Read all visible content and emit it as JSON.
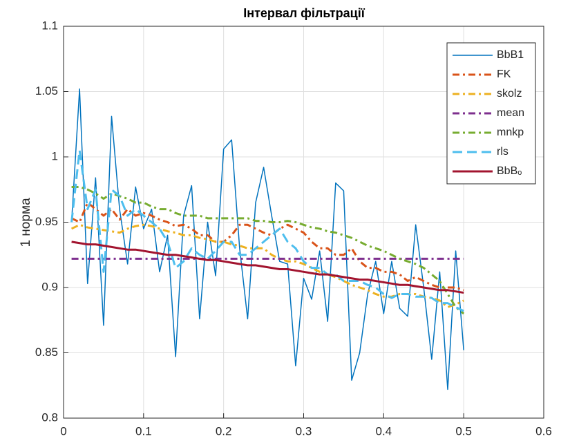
{
  "chart_data": {
    "type": "line",
    "title": "Інтервал фільтрації",
    "ylabel": "1 норма",
    "x": [
      0.01,
      0.02,
      0.03,
      0.04,
      0.05,
      0.06,
      0.07,
      0.08,
      0.09,
      0.1,
      0.11,
      0.12,
      0.13,
      0.14,
      0.15,
      0.16,
      0.17,
      0.18,
      0.19,
      0.2,
      0.21,
      0.22,
      0.23,
      0.24,
      0.25,
      0.26,
      0.27,
      0.28,
      0.29,
      0.3,
      0.31,
      0.32,
      0.33,
      0.34,
      0.35,
      0.36,
      0.37,
      0.38,
      0.39,
      0.4,
      0.41,
      0.42,
      0.43,
      0.44,
      0.45,
      0.46,
      0.47,
      0.48,
      0.49,
      0.5
    ],
    "series": [
      {
        "name": "BbB1",
        "color": "#0072bd",
        "linestyle": "solid",
        "linewidth": 1.5,
        "values": [
          0.95,
          1.052,
          0.903,
          0.984,
          0.871,
          1.031,
          0.96,
          0.918,
          0.977,
          0.945,
          0.96,
          0.912,
          0.94,
          0.847,
          0.955,
          0.978,
          0.876,
          0.95,
          0.909,
          1.006,
          1.013,
          0.93,
          0.876,
          0.965,
          0.992,
          0.955,
          0.92,
          0.918,
          0.84,
          0.907,
          0.891,
          0.928,
          0.874,
          0.98,
          0.974,
          0.829,
          0.85,
          0.895,
          0.92,
          0.88,
          0.92,
          0.884,
          0.878,
          0.948,
          0.9,
          0.845,
          0.912,
          0.822,
          0.928,
          0.852
        ]
      },
      {
        "name": "FK",
        "color": "#d95319",
        "linestyle": "dashdot",
        "linewidth": 3,
        "values": [
          0.953,
          0.95,
          0.965,
          0.96,
          0.955,
          0.96,
          0.952,
          0.96,
          0.955,
          0.957,
          0.955,
          0.952,
          0.95,
          0.947,
          0.948,
          0.945,
          0.94,
          0.94,
          0.935,
          0.935,
          0.94,
          0.948,
          0.948,
          0.945,
          0.942,
          0.94,
          0.945,
          0.948,
          0.945,
          0.942,
          0.935,
          0.93,
          0.93,
          0.925,
          0.925,
          0.93,
          0.92,
          0.915,
          0.915,
          0.912,
          0.912,
          0.91,
          0.905,
          0.908,
          0.905,
          0.902,
          0.9,
          0.9,
          0.9,
          0.898
        ]
      },
      {
        "name": "skolz",
        "color": "#edb120",
        "linestyle": "dashdot",
        "linewidth": 3,
        "values": [
          0.945,
          0.948,
          0.946,
          0.945,
          0.944,
          0.943,
          0.942,
          0.945,
          0.947,
          0.948,
          0.947,
          0.945,
          0.943,
          0.942,
          0.94,
          0.94,
          0.938,
          0.937,
          0.935,
          0.935,
          0.933,
          0.932,
          0.93,
          0.93,
          0.93,
          0.925,
          0.922,
          0.92,
          0.92,
          0.918,
          0.915,
          0.912,
          0.91,
          0.908,
          0.905,
          0.902,
          0.9,
          0.898,
          0.895,
          0.893,
          0.893,
          0.895,
          0.895,
          0.895,
          0.893,
          0.892,
          0.89,
          0.885,
          0.887,
          0.89
        ]
      },
      {
        "name": "mean",
        "color": "#7e2f8e",
        "linestyle": "dashdot",
        "linewidth": 3,
        "values": [
          0.922,
          0.922,
          0.922,
          0.922,
          0.922,
          0.922,
          0.922,
          0.922,
          0.922,
          0.922,
          0.922,
          0.922,
          0.922,
          0.922,
          0.922,
          0.922,
          0.922,
          0.922,
          0.922,
          0.922,
          0.922,
          0.922,
          0.922,
          0.922,
          0.922,
          0.922,
          0.922,
          0.922,
          0.922,
          0.922,
          0.922,
          0.922,
          0.922,
          0.922,
          0.922,
          0.922,
          0.922,
          0.922,
          0.922,
          0.922,
          0.922,
          0.922,
          0.922,
          0.922,
          0.922,
          0.922,
          0.922,
          0.922,
          0.922,
          0.922
        ]
      },
      {
        "name": "mnkp",
        "color": "#77ac30",
        "linestyle": "dashdot",
        "linewidth": 3,
        "values": [
          0.977,
          0.977,
          0.975,
          0.972,
          0.968,
          0.972,
          0.97,
          0.968,
          0.965,
          0.965,
          0.962,
          0.96,
          0.96,
          0.957,
          0.955,
          0.955,
          0.955,
          0.953,
          0.953,
          0.953,
          0.953,
          0.953,
          0.953,
          0.951,
          0.951,
          0.95,
          0.95,
          0.951,
          0.95,
          0.948,
          0.946,
          0.945,
          0.943,
          0.942,
          0.94,
          0.938,
          0.935,
          0.932,
          0.93,
          0.928,
          0.925,
          0.922,
          0.92,
          0.918,
          0.915,
          0.91,
          0.905,
          0.895,
          0.885,
          0.88
        ]
      },
      {
        "name": "rls",
        "color": "#4dbeee",
        "linestyle": "dashed",
        "linewidth": 3,
        "values": [
          0.95,
          1.005,
          0.96,
          0.975,
          0.912,
          0.975,
          0.97,
          0.955,
          0.96,
          0.955,
          0.95,
          0.945,
          0.935,
          0.915,
          0.92,
          0.93,
          0.925,
          0.922,
          0.928,
          0.935,
          0.935,
          0.925,
          0.925,
          0.93,
          0.935,
          0.94,
          0.945,
          0.935,
          0.93,
          0.92,
          0.915,
          0.915,
          0.91,
          0.91,
          0.905,
          0.905,
          0.905,
          0.902,
          0.9,
          0.895,
          0.892,
          0.895,
          0.895,
          0.893,
          0.893,
          0.892,
          0.888,
          0.888,
          0.885,
          0.882
        ]
      },
      {
        "name": "BbBₒ",
        "color": "#a2142f",
        "linestyle": "solid",
        "linewidth": 3,
        "values": [
          0.935,
          0.934,
          0.933,
          0.933,
          0.932,
          0.931,
          0.93,
          0.929,
          0.929,
          0.928,
          0.927,
          0.926,
          0.925,
          0.925,
          0.924,
          0.923,
          0.922,
          0.921,
          0.921,
          0.92,
          0.919,
          0.918,
          0.917,
          0.917,
          0.916,
          0.915,
          0.914,
          0.914,
          0.913,
          0.912,
          0.911,
          0.91,
          0.91,
          0.909,
          0.908,
          0.907,
          0.906,
          0.906,
          0.905,
          0.904,
          0.903,
          0.902,
          0.902,
          0.901,
          0.9,
          0.899,
          0.898,
          0.898,
          0.897,
          0.896
        ]
      }
    ],
    "xlim": [
      0,
      0.6
    ],
    "xticks": [
      0,
      0.1,
      0.2,
      0.3,
      0.4,
      0.5,
      0.6
    ],
    "ylim": [
      0.8,
      1.1
    ],
    "yticks": [
      0.8,
      0.85,
      0.9,
      0.95,
      1,
      1.05,
      1.1
    ],
    "grid": true,
    "legend": "northeast"
  }
}
